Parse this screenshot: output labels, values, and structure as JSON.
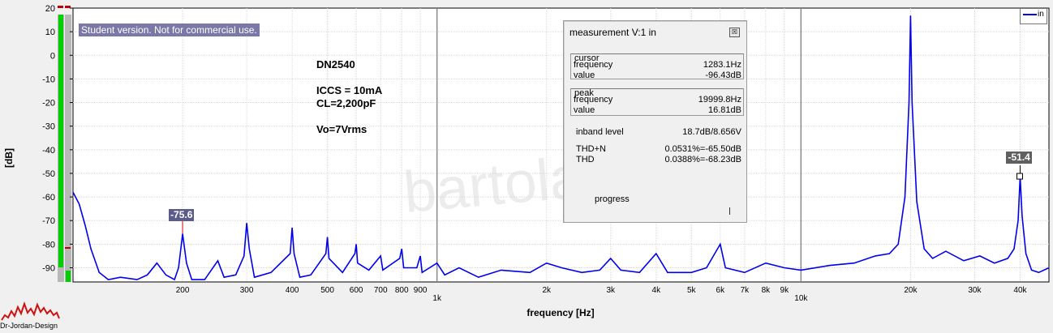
{
  "chart_data": {
    "type": "line",
    "title": "",
    "xlabel": "frequency [Hz]",
    "ylabel": "[dB]",
    "x_scale": "log",
    "xlim": [
      100,
      48000
    ],
    "ylim": [
      -96,
      20
    ],
    "y_ticks": [
      20,
      10,
      0,
      -10,
      -20,
      -30,
      -40,
      -50,
      -60,
      -70,
      -80,
      -90
    ],
    "y_tick_labels": [
      "20",
      "10",
      "0",
      "-10",
      "-20",
      "-30",
      "-40",
      "-50",
      "-60",
      "-70",
      "-80",
      "-90"
    ],
    "x_ticks": [
      200,
      300,
      400,
      500,
      600,
      700,
      800,
      900,
      1000,
      2000,
      3000,
      4000,
      5000,
      6000,
      7000,
      8000,
      9000,
      10000,
      20000,
      30000,
      40000
    ],
    "x_tick_labels": [
      "200",
      "300",
      "400",
      "500",
      "600",
      "700",
      "800",
      "900",
      "1k",
      "2k",
      "3k",
      "4k",
      "5k",
      "6k",
      "7k",
      "8k",
      "9k",
      "10k",
      "20k",
      "30k",
      "40k"
    ],
    "grid": true,
    "legend_position": "top-right",
    "series": [
      {
        "name": "in",
        "color": "#0000ee",
        "points": [
          [
            100,
            -58
          ],
          [
            104,
            -63
          ],
          [
            108,
            -72
          ],
          [
            112,
            -82
          ],
          [
            118,
            -92
          ],
          [
            125,
            -95
          ],
          [
            135,
            -94
          ],
          [
            150,
            -95
          ],
          [
            160,
            -93
          ],
          [
            170,
            -88
          ],
          [
            180,
            -93
          ],
          [
            190,
            -95
          ],
          [
            195,
            -90
          ],
          [
            200,
            -75.6
          ],
          [
            205,
            -88
          ],
          [
            212,
            -95
          ],
          [
            230,
            -95
          ],
          [
            250,
            -87
          ],
          [
            260,
            -94
          ],
          [
            280,
            -93
          ],
          [
            295,
            -85
          ],
          [
            300,
            -71
          ],
          [
            305,
            -82
          ],
          [
            315,
            -94
          ],
          [
            350,
            -92
          ],
          [
            395,
            -84
          ],
          [
            400,
            -73
          ],
          [
            405,
            -84
          ],
          [
            420,
            -94
          ],
          [
            450,
            -93
          ],
          [
            495,
            -84
          ],
          [
            500,
            -77
          ],
          [
            505,
            -86
          ],
          [
            550,
            -92
          ],
          [
            595,
            -84
          ],
          [
            600,
            -80
          ],
          [
            605,
            -88
          ],
          [
            650,
            -91
          ],
          [
            700,
            -85
          ],
          [
            710,
            -91
          ],
          [
            790,
            -86
          ],
          [
            800,
            -82
          ],
          [
            810,
            -90
          ],
          [
            880,
            -90
          ],
          [
            900,
            -85
          ],
          [
            910,
            -92
          ],
          [
            1000,
            -88
          ],
          [
            1050,
            -93
          ],
          [
            1150,
            -90
          ],
          [
            1300,
            -94
          ],
          [
            1500,
            -91
          ],
          [
            1800,
            -92
          ],
          [
            2000,
            -88
          ],
          [
            2200,
            -90
          ],
          [
            2500,
            -92
          ],
          [
            2800,
            -91
          ],
          [
            3000,
            -86
          ],
          [
            3200,
            -91
          ],
          [
            3600,
            -92
          ],
          [
            4000,
            -84
          ],
          [
            4300,
            -92
          ],
          [
            5000,
            -92
          ],
          [
            5500,
            -90
          ],
          [
            6000,
            -80
          ],
          [
            6200,
            -90
          ],
          [
            7000,
            -92
          ],
          [
            8000,
            -88
          ],
          [
            9000,
            -90
          ],
          [
            10000,
            -91
          ],
          [
            12000,
            -89
          ],
          [
            14000,
            -88
          ],
          [
            16000,
            -85
          ],
          [
            17500,
            -84
          ],
          [
            18500,
            -80
          ],
          [
            19300,
            -60
          ],
          [
            19800,
            -20
          ],
          [
            20000,
            16.81
          ],
          [
            20200,
            -20
          ],
          [
            20800,
            -62
          ],
          [
            21800,
            -82
          ],
          [
            23000,
            -86
          ],
          [
            25000,
            -83
          ],
          [
            28000,
            -87
          ],
          [
            31000,
            -85
          ],
          [
            34000,
            -88
          ],
          [
            37000,
            -86
          ],
          [
            38500,
            -82
          ],
          [
            39500,
            -70
          ],
          [
            40000,
            -51.4
          ],
          [
            40500,
            -68
          ],
          [
            41500,
            -84
          ],
          [
            43000,
            -91
          ],
          [
            45000,
            -92
          ],
          [
            48000,
            -90
          ]
        ]
      }
    ],
    "annotations": [
      {
        "x": 200,
        "y": -75.6,
        "text": "-75.6"
      },
      {
        "x": 40000,
        "y": -51.4,
        "text": "-51.4"
      }
    ],
    "notes": [
      "DN2540",
      "ICCS = 10mA",
      "CL=2,200pF",
      "Vo=7Vrms"
    ],
    "banner": "Student version. Not for commercial use.",
    "watermark": "bartola.co.uk",
    "logo": "Dr-Jordan-Design"
  },
  "measurement": {
    "title": "measurement V:1 in",
    "close_glyph": "☒",
    "cursor": {
      "label": "cursor",
      "frequency_label": "frequency",
      "frequency": "1283.1Hz",
      "value_label": "value",
      "value": "-96.43dB"
    },
    "peak": {
      "label": "peak",
      "frequency_label": "frequency",
      "frequency": "19999.8Hz",
      "value_label": "value",
      "value": "16.81dB"
    },
    "inband_label": "inband level",
    "inband": "18.7dB/8.656V",
    "thdn_label": "THD+N",
    "thdn": "0.0531%=-65.50dB",
    "thd_label": "THD",
    "thd": "0.0388%=-68.23dB",
    "progress_label": "progress"
  },
  "colors": {
    "series": "#0000ee",
    "label_bg": "#5b5b8c",
    "meter_green": "#00d000"
  }
}
